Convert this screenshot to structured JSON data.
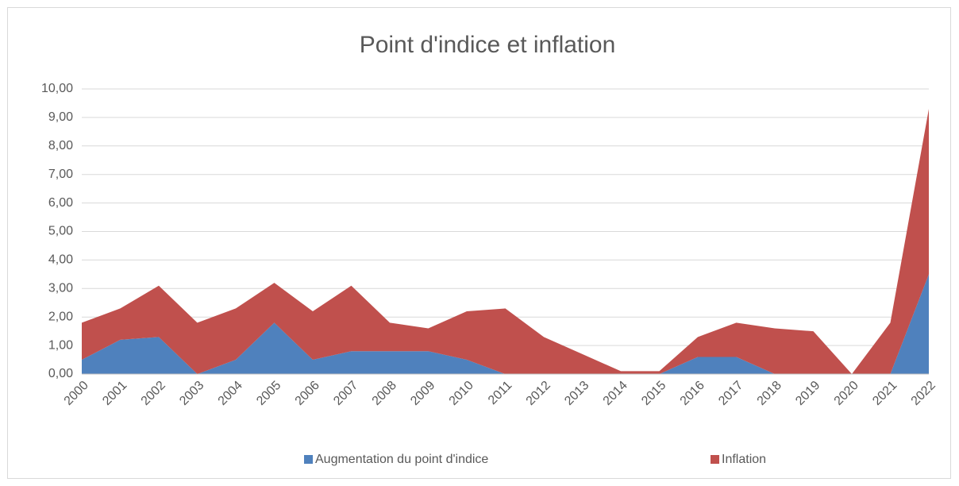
{
  "chart_data": {
    "type": "stacked_area",
    "title": "Point d'indice et inflation",
    "categories": [
      "2000",
      "2001",
      "2002",
      "2003",
      "2004",
      "2005",
      "2006",
      "2007",
      "2008",
      "2009",
      "2010",
      "2011",
      "2012",
      "2013",
      "2014",
      "2015",
      "2016",
      "2017",
      "2018",
      "2019",
      "2020",
      "2021",
      "2022"
    ],
    "series": [
      {
        "name": "Augmentation du point d'indice",
        "color": "#4f81bd",
        "values": [
          0.5,
          1.2,
          1.3,
          0,
          0.5,
          1.8,
          0.5,
          0.8,
          0.8,
          0.8,
          0.5,
          0,
          0,
          0,
          0,
          0,
          0.6,
          0.6,
          0,
          0,
          0,
          0,
          3.5
        ]
      },
      {
        "name": "Inflation",
        "color": "#c0504d",
        "values": [
          1.3,
          1.1,
          1.8,
          1.8,
          1.8,
          1.4,
          1.7,
          2.3,
          1.0,
          0.8,
          1.7,
          2.3,
          1.3,
          0.7,
          0.1,
          0.1,
          0.7,
          1.2,
          1.6,
          1.5,
          0,
          1.8,
          5.8
        ]
      }
    ],
    "ylim": [
      0,
      10
    ],
    "yticks": [
      {
        "value": 0,
        "label": "0,00"
      },
      {
        "value": 1,
        "label": "1,00"
      },
      {
        "value": 2,
        "label": "2,00"
      },
      {
        "value": 3,
        "label": "3,00"
      },
      {
        "value": 4,
        "label": "4,00"
      },
      {
        "value": 5,
        "label": "5,00"
      },
      {
        "value": 6,
        "label": "6,00"
      },
      {
        "value": 7,
        "label": "7,00"
      },
      {
        "value": 8,
        "label": "8,00"
      },
      {
        "value": 9,
        "label": "9,00"
      },
      {
        "value": 10,
        "label": "10,00"
      }
    ],
    "grid": true,
    "legend": "bottom"
  }
}
